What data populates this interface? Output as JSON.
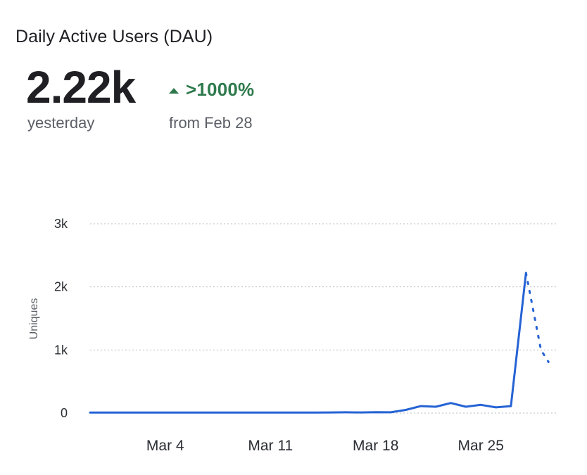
{
  "card": {
    "title": "Daily Active Users (DAU)"
  },
  "metric": {
    "value": "2.22k",
    "caption": "yesterday",
    "delta_icon": "triangle-up-icon",
    "delta_value": ">1000%",
    "delta_caption": "from Feb 28",
    "delta_color": "#2f7a4d"
  },
  "chart_data": {
    "type": "line",
    "ylabel": "Uniques",
    "ylim": [
      0,
      3000
    ],
    "y_ticks": [
      {
        "value": 0,
        "label": "0"
      },
      {
        "value": 1000,
        "label": "1k"
      },
      {
        "value": 2000,
        "label": "2k"
      },
      {
        "value": 3000,
        "label": "3k"
      }
    ],
    "x_ticks": [
      {
        "date": "2024-03-04",
        "label": "Mar 4"
      },
      {
        "date": "2024-03-11",
        "label": "Mar 11"
      },
      {
        "date": "2024-03-18",
        "label": "Mar 18"
      },
      {
        "date": "2024-03-25",
        "label": "Mar 25"
      }
    ],
    "xlim": [
      "2024-02-28",
      "2024-03-30"
    ],
    "grid": true,
    "line_color": "#2563d4",
    "series": [
      {
        "values": [
          {
            "date": "2024-02-28",
            "value": 8
          },
          {
            "date": "2024-02-29",
            "value": 8
          },
          {
            "date": "2024-03-01",
            "value": 8
          },
          {
            "date": "2024-03-02",
            "value": 8
          },
          {
            "date": "2024-03-03",
            "value": 8
          },
          {
            "date": "2024-03-04",
            "value": 8
          },
          {
            "date": "2024-03-05",
            "value": 8
          },
          {
            "date": "2024-03-06",
            "value": 8
          },
          {
            "date": "2024-03-07",
            "value": 8
          },
          {
            "date": "2024-03-08",
            "value": 8
          },
          {
            "date": "2024-03-09",
            "value": 8
          },
          {
            "date": "2024-03-10",
            "value": 8
          },
          {
            "date": "2024-03-11",
            "value": 8
          },
          {
            "date": "2024-03-12",
            "value": 8
          },
          {
            "date": "2024-03-13",
            "value": 8
          },
          {
            "date": "2024-03-14",
            "value": 8
          },
          {
            "date": "2024-03-15",
            "value": 10
          },
          {
            "date": "2024-03-16",
            "value": 12
          },
          {
            "date": "2024-03-17",
            "value": 10
          },
          {
            "date": "2024-03-18",
            "value": 14
          },
          {
            "date": "2024-03-19",
            "value": 12
          },
          {
            "date": "2024-03-20",
            "value": 50
          },
          {
            "date": "2024-03-21",
            "value": 110
          },
          {
            "date": "2024-03-22",
            "value": 100
          },
          {
            "date": "2024-03-23",
            "value": 160
          },
          {
            "date": "2024-03-24",
            "value": 100
          },
          {
            "date": "2024-03-25",
            "value": 130
          },
          {
            "date": "2024-03-26",
            "value": 90
          },
          {
            "date": "2024-03-27",
            "value": 110
          },
          {
            "date": "2024-03-28",
            "value": 2220
          }
        ]
      },
      {
        "style": "dotted",
        "values": [
          {
            "date": "2024-03-28",
            "value": 2220
          },
          {
            "date": "2024-03-29",
            "value": 1000
          },
          {
            "date": "2024-03-29T12:00",
            "value": 810
          }
        ]
      }
    ]
  }
}
